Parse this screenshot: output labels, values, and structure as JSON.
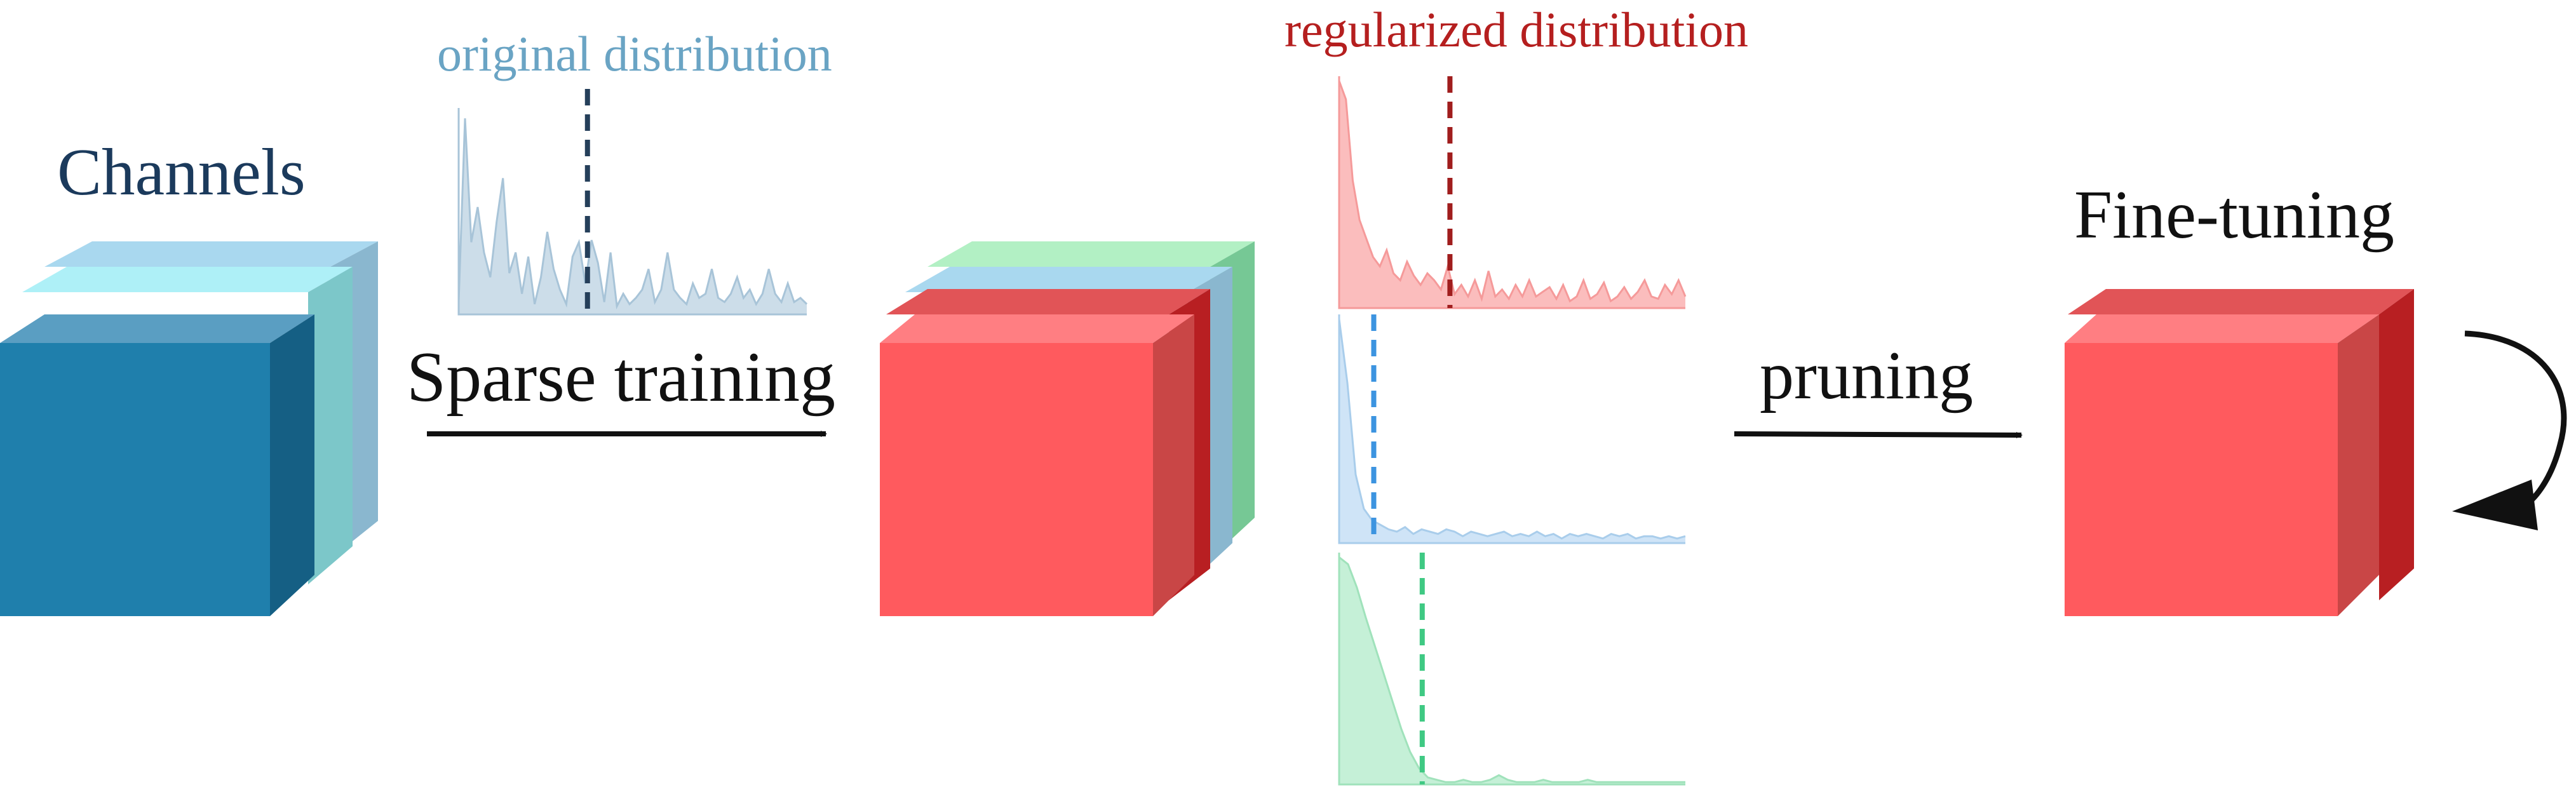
{
  "labels": {
    "channels": "Channels",
    "original_distribution": "original distribution",
    "regularized_distribution": "regularized distribution",
    "sparse_training": "Sparse training",
    "pruning": "pruning",
    "fine_tuning": "Fine-tuning"
  },
  "colors": {
    "channels_title": "#1b3a5c",
    "original_text": "#6aa4c4",
    "regularized_text": "#b51f1f",
    "black_text": "#111111",
    "blue_cube_front": "#1f7fac",
    "blue_cube_top": "#5a9ec2",
    "blue_cube_side": "#155f84",
    "red_cube_front": "#ff5a5e",
    "red_cube_top": "#ff7e82",
    "red_cube_side": "#c94646",
    "red_cube_side_dark": "#b81f22",
    "layer_light_blue": "#a9d8ef",
    "layer_cyan": "#aef0f7",
    "layer_teal_side": "#7cc7c9",
    "layer_blue_side": "#8ab7cf",
    "layer_green": "#b2f0c4",
    "layer_green_side": "#76c895",
    "hist_original_fill": "#ccdde9",
    "hist_original_line": "#a8c4d8",
    "hist_original_dash": "#253f5a",
    "hist_red_fill": "#fbbdbd",
    "hist_red_line": "#f59a9a",
    "hist_red_dash": "#a01d1d",
    "hist_blue_fill": "#cfe4f7",
    "hist_blue_line": "#a9cdeb",
    "hist_blue_dash": "#3c94e0",
    "hist_green_fill": "#c5f0d7",
    "hist_green_line": "#a0e2bb",
    "hist_green_dash": "#3fc983"
  },
  "distributions": {
    "original": {
      "values": [
        0.06,
        0.95,
        0.35,
        0.52,
        0.3,
        0.18,
        0.45,
        0.66,
        0.2,
        0.3,
        0.1,
        0.28,
        0.05,
        0.18,
        0.4,
        0.22,
        0.12,
        0.05,
        0.28,
        0.35,
        0.15,
        0.36,
        0.25,
        0.06,
        0.3,
        0.04,
        0.1,
        0.05,
        0.08,
        0.12,
        0.22,
        0.06,
        0.12,
        0.3,
        0.12,
        0.08,
        0.05,
        0.15,
        0.08,
        0.1,
        0.22,
        0.08,
        0.06,
        0.1,
        0.18,
        0.08,
        0.12,
        0.05,
        0.1,
        0.22,
        0.1,
        0.06,
        0.15,
        0.06,
        0.08,
        0.05
      ],
      "threshold": 0.37
    },
    "regularized_red": {
      "values": [
        0.98,
        0.9,
        0.55,
        0.38,
        0.3,
        0.22,
        0.18,
        0.25,
        0.15,
        0.12,
        0.2,
        0.14,
        0.1,
        0.15,
        0.12,
        0.08,
        0.18,
        0.06,
        0.1,
        0.05,
        0.12,
        0.04,
        0.16,
        0.05,
        0.08,
        0.04,
        0.1,
        0.05,
        0.12,
        0.05,
        0.07,
        0.09,
        0.04,
        0.1,
        0.03,
        0.05,
        0.12,
        0.04,
        0.06,
        0.11,
        0.03,
        0.05,
        0.09,
        0.04,
        0.07,
        0.12,
        0.05,
        0.04,
        0.1,
        0.06,
        0.12,
        0.05
      ],
      "threshold": 0.32
    },
    "regularized_blue": {
      "values": [
        0.98,
        0.7,
        0.3,
        0.15,
        0.1,
        0.08,
        0.06,
        0.05,
        0.07,
        0.04,
        0.06,
        0.05,
        0.04,
        0.06,
        0.05,
        0.03,
        0.05,
        0.04,
        0.03,
        0.04,
        0.05,
        0.03,
        0.04,
        0.03,
        0.05,
        0.03,
        0.04,
        0.02,
        0.04,
        0.03,
        0.04,
        0.03,
        0.02,
        0.04,
        0.03,
        0.04,
        0.02,
        0.03,
        0.03,
        0.02,
        0.03,
        0.02,
        0.03
      ],
      "threshold": 0.1
    },
    "regularized_green": {
      "values": [
        0.98,
        0.95,
        0.85,
        0.72,
        0.6,
        0.48,
        0.36,
        0.24,
        0.14,
        0.07,
        0.03,
        0.02,
        0.01,
        0.01,
        0.02,
        0.01,
        0.01,
        0.02,
        0.04,
        0.02,
        0.01,
        0.01,
        0.01,
        0.02,
        0.01,
        0.01,
        0.01,
        0.01,
        0.02,
        0.01,
        0.01,
        0.01,
        0.01,
        0.01,
        0.01,
        0.01,
        0.01,
        0.01,
        0.01,
        0.01
      ],
      "threshold": 0.24
    }
  }
}
